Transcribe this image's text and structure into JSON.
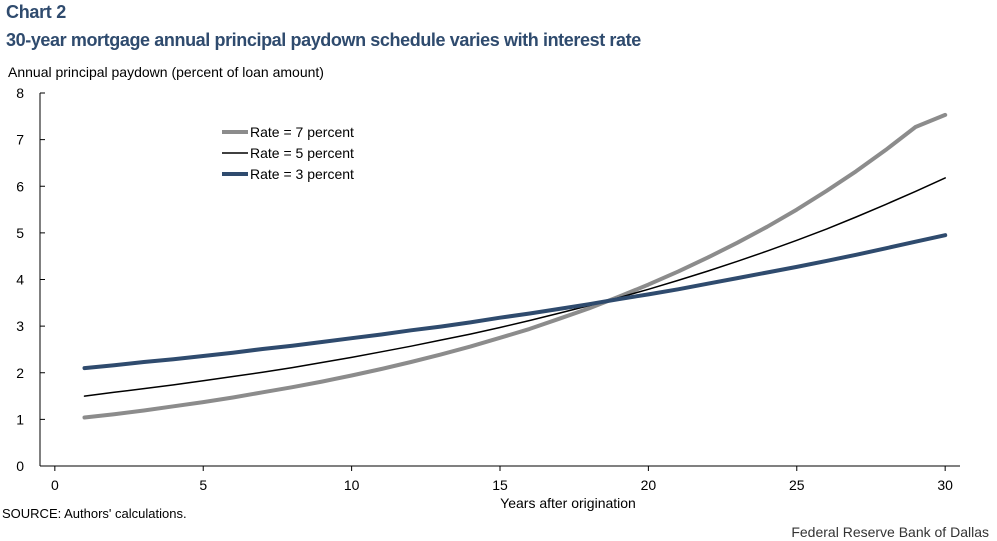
{
  "header": {
    "label": "Chart 2",
    "title": "30-year mortgage annual principal paydown schedule varies with interest rate"
  },
  "footer": {
    "source": "SOURCE: Authors' calculations.",
    "credit": "Federal Reserve Bank of Dallas"
  },
  "colors": {
    "rate7": "#8c8c8c",
    "rate5": "#000000",
    "rate3": "#2f4b6e",
    "axis": "#000000",
    "title": "#2f4b6e"
  },
  "chart_data": {
    "type": "line",
    "title": "30-year mortgage annual principal paydown schedule varies with interest rate",
    "xlabel": "Years after origination",
    "ylabel": "Annual principal paydown (percent of loan amount)",
    "xlim": [
      -0.5,
      30.5
    ],
    "ylim": [
      0,
      8
    ],
    "xticks": [
      0,
      5,
      10,
      15,
      20,
      25,
      30
    ],
    "yticks": [
      0,
      1,
      2,
      3,
      4,
      5,
      6,
      7,
      8
    ],
    "grid": false,
    "legend_position": "top-left",
    "x": [
      1,
      2,
      3,
      4,
      5,
      6,
      7,
      8,
      9,
      10,
      11,
      12,
      13,
      14,
      15,
      16,
      17,
      18,
      19,
      20,
      21,
      22,
      23,
      24,
      25,
      26,
      27,
      28,
      29,
      30
    ],
    "series": [
      {
        "name": "Rate = 7 percent",
        "color_key": "rate7",
        "values": [
          1.04,
          1.11,
          1.19,
          1.28,
          1.37,
          1.47,
          1.58,
          1.69,
          1.81,
          1.94,
          2.08,
          2.23,
          2.39,
          2.56,
          2.75,
          2.94,
          3.16,
          3.38,
          3.63,
          3.89,
          4.17,
          4.47,
          4.79,
          5.13,
          5.5,
          5.9,
          6.32,
          6.78,
          7.27,
          7.53
        ]
      },
      {
        "name": "Rate = 5 percent",
        "color_key": "rate5",
        "values": [
          1.5,
          1.58,
          1.66,
          1.74,
          1.83,
          1.92,
          2.01,
          2.11,
          2.22,
          2.33,
          2.45,
          2.57,
          2.7,
          2.83,
          2.97,
          3.12,
          3.28,
          3.44,
          3.61,
          3.79,
          3.98,
          4.18,
          4.39,
          4.61,
          4.84,
          5.08,
          5.34,
          5.61,
          5.89,
          6.18
        ]
      },
      {
        "name": "Rate = 3 percent",
        "color_key": "rate3",
        "values": [
          2.1,
          2.16,
          2.23,
          2.29,
          2.36,
          2.43,
          2.51,
          2.58,
          2.66,
          2.74,
          2.82,
          2.91,
          2.99,
          3.08,
          3.18,
          3.27,
          3.37,
          3.47,
          3.58,
          3.68,
          3.79,
          3.91,
          4.03,
          4.15,
          4.27,
          4.4,
          4.53,
          4.67,
          4.81,
          4.95
        ]
      }
    ]
  }
}
